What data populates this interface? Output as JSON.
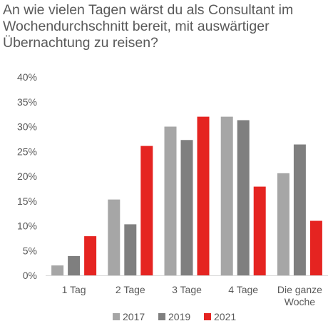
{
  "chart_data": {
    "type": "bar",
    "title_lines": [
      "An wie vielen Tagen wärst du als Consultant im",
      "Wochendurchschnitt bereit, mit auswärtiger",
      "Übernachtung zu reisen?"
    ],
    "categories": [
      [
        "1 Tag"
      ],
      [
        "2 Tage"
      ],
      [
        "3 Tage"
      ],
      [
        "4 Tage"
      ],
      [
        "Die ganze",
        "Woche"
      ]
    ],
    "y_ticks": [
      "0%",
      "5%",
      "10%",
      "15%",
      "20%",
      "25%",
      "30%",
      "35%",
      "40%"
    ],
    "ylim": [
      0,
      40
    ],
    "y_unit": "%",
    "grid": false,
    "legend_position": "bottom",
    "series": [
      {
        "name": "2017",
        "color": "#a6a6a6",
        "values": [
          2,
          15.3,
          30,
          32,
          20.6
        ]
      },
      {
        "name": "2019",
        "color": "#7f7f7f",
        "values": [
          3.9,
          10.3,
          27.3,
          31.3,
          26.4
        ]
      },
      {
        "name": "2021",
        "color": "#e52421",
        "values": [
          7.9,
          26.1,
          32,
          17.9,
          11
        ]
      }
    ]
  }
}
